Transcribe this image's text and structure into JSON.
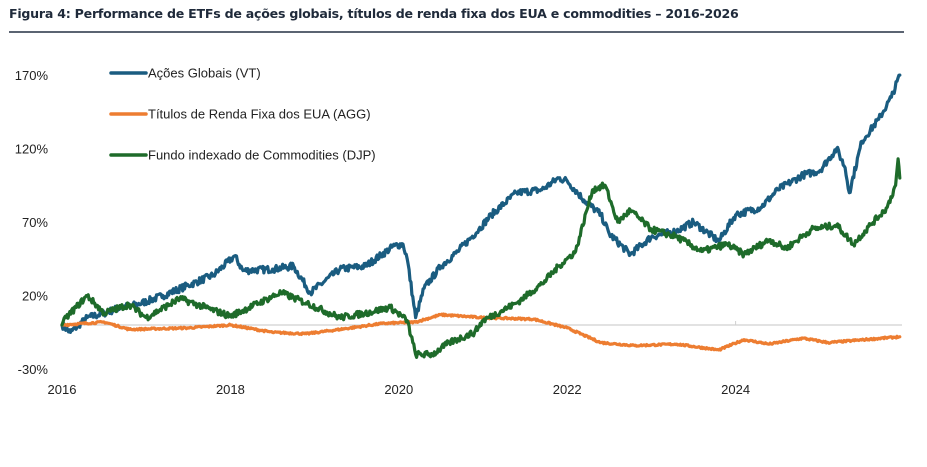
{
  "figure": {
    "title": "Figura 4: Performance de ETFs de ações globais, títulos de renda fixa dos EUA e commodities – 2016-2026"
  },
  "chart_data": {
    "type": "line",
    "title": "Figura 4: Performance de ETFs de ações globais, títulos de renda fixa dos EUA e commodities – 2016-2026",
    "xlabel": "",
    "ylabel": "",
    "xlim": [
      2016,
      2026
    ],
    "ylim": [
      -30,
      170
    ],
    "x_ticks": [
      2016,
      2018,
      2020,
      2022,
      2024
    ],
    "x_tick_labels": [
      "2016",
      "2018",
      "2020",
      "2022",
      "2024"
    ],
    "y_ticks": [
      170,
      120,
      70,
      20,
      -30
    ],
    "y_tick_labels": [
      "170%",
      "120%",
      "70%",
      "20%",
      "-30%"
    ],
    "grid": false,
    "zero_line": true,
    "legend_position": "top-left",
    "series": [
      {
        "name": "Ações Globais (VT)",
        "color": "#1a5c80",
        "x": [
          2016.0,
          2016.1,
          2016.3,
          2016.5,
          2016.7,
          2016.9,
          2017.2,
          2017.5,
          2017.8,
          2018.05,
          2018.15,
          2018.5,
          2018.75,
          2018.95,
          2019.3,
          2019.6,
          2019.95,
          2020.05,
          2020.1,
          2020.2,
          2020.3,
          2020.5,
          2020.7,
          2020.95,
          2021.1,
          2021.4,
          2021.7,
          2021.9,
          2022.0,
          2022.2,
          2022.4,
          2022.5,
          2022.75,
          2023.0,
          2023.3,
          2023.5,
          2023.8,
          2024.0,
          2024.3,
          2024.5,
          2024.8,
          2025.0,
          2025.2,
          2025.3,
          2025.35,
          2025.5,
          2025.7,
          2025.85,
          2025.95
        ],
        "values": [
          0,
          -5,
          5,
          8,
          12,
          14,
          20,
          27,
          34,
          47,
          37,
          38,
          40,
          22,
          38,
          40,
          54,
          55,
          45,
          5,
          25,
          40,
          50,
          65,
          75,
          90,
          92,
          100,
          98,
          85,
          75,
          62,
          48,
          60,
          64,
          70,
          57,
          75,
          80,
          92,
          102,
          105,
          120,
          107,
          90,
          125,
          140,
          155,
          170
        ]
      },
      {
        "name": "Títulos de Renda Fixa dos EUA (AGG)",
        "color": "#ed7d31",
        "x": [
          2016.0,
          2016.5,
          2016.8,
          2017.5,
          2018.0,
          2018.5,
          2018.9,
          2019.3,
          2019.8,
          2020.2,
          2020.5,
          2021.0,
          2021.6,
          2022.0,
          2022.4,
          2022.8,
          2023.3,
          2023.8,
          2024.1,
          2024.4,
          2024.8,
          2025.1,
          2025.95
        ],
        "values": [
          0,
          2,
          -3,
          -2,
          0,
          -5,
          -6,
          -3,
          1,
          2,
          7,
          5,
          4,
          -2,
          -12,
          -14,
          -13,
          -17,
          -10,
          -13,
          -9,
          -12,
          -8
        ]
      },
      {
        "name": "Fundo indexado de Commodities (DJP)",
        "color": "#1e6b2a",
        "x": [
          2016.0,
          2016.05,
          2016.3,
          2016.5,
          2016.8,
          2017.0,
          2017.4,
          2017.7,
          2018.0,
          2018.6,
          2018.9,
          2019.3,
          2019.6,
          2019.9,
          2020.1,
          2020.2,
          2020.4,
          2020.6,
          2020.9,
          2021.0,
          2021.4,
          2021.7,
          2021.9,
          2022.1,
          2022.3,
          2022.45,
          2022.6,
          2022.75,
          2023.0,
          2023.3,
          2023.6,
          2023.9,
          2024.1,
          2024.4,
          2024.6,
          2024.9,
          2025.2,
          2025.4,
          2025.6,
          2025.8,
          2025.9,
          2025.93,
          2025.95
        ],
        "values": [
          0,
          5,
          20,
          8,
          14,
          5,
          18,
          12,
          6,
          22,
          15,
          5,
          8,
          12,
          3,
          -20,
          -20,
          -12,
          -5,
          3,
          15,
          28,
          40,
          50,
          92,
          95,
          70,
          78,
          65,
          60,
          50,
          55,
          48,
          58,
          52,
          65,
          68,
          55,
          68,
          80,
          95,
          113,
          100
        ]
      }
    ]
  }
}
